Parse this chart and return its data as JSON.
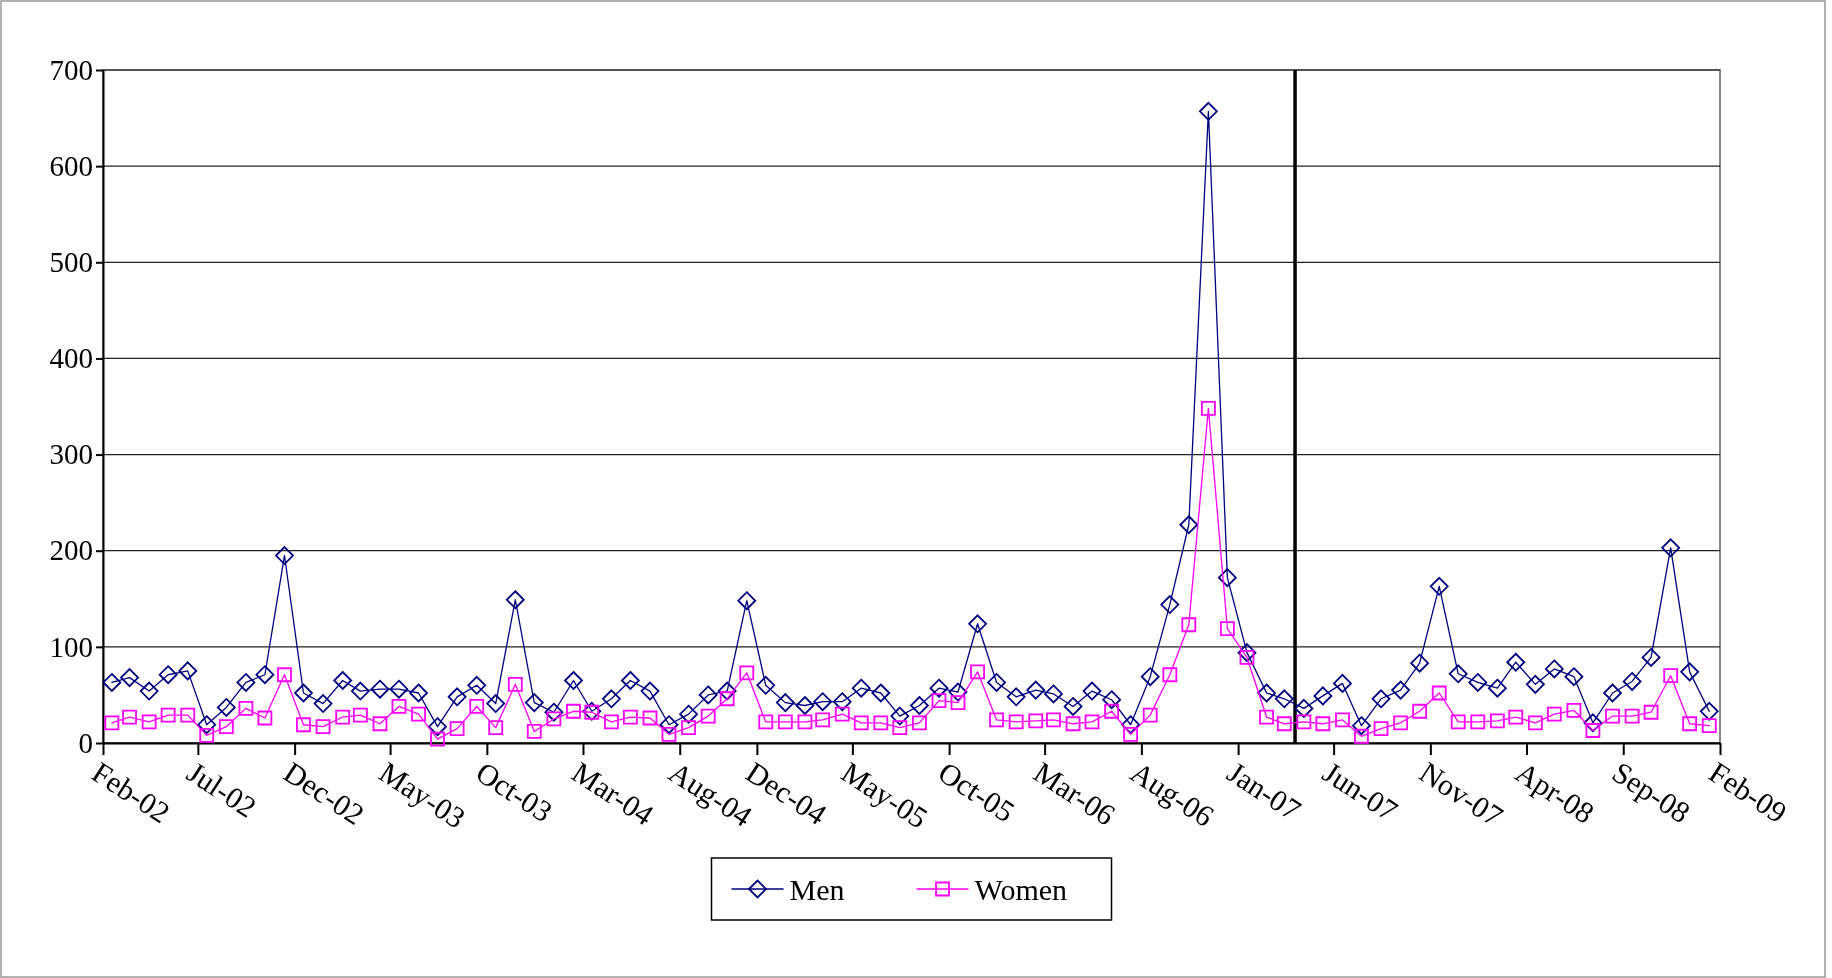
{
  "chart_data": {
    "type": "line",
    "x": [
      "2002-02-15",
      "2002-03-15",
      "2002-04-15",
      "2002-05-15",
      "2002-06-15",
      "2002-07-15",
      "2002-08-15",
      "2002-09-15",
      "2002-10-15",
      "2002-11-15",
      "2002-12-15",
      "2003-01-15",
      "2003-02-15",
      "2003-03-15",
      "2003-04-15",
      "2003-05-15",
      "2003-06-15",
      "2003-07-15",
      "2003-08-15",
      "2003-09-15",
      "2003-10-15",
      "2003-11-15",
      "2003-12-15",
      "2004-01-15",
      "2004-02-15",
      "2004-03-15",
      "2004-04-15",
      "2004-05-15",
      "2004-06-15",
      "2004-07-15",
      "2004-08-15",
      "2004-09-15",
      "2004-10-15",
      "2004-11-15",
      "2004-12-15",
      "2005-01-15",
      "2005-02-15",
      "2005-03-15",
      "2005-04-15",
      "2005-05-15",
      "2005-06-15",
      "2005-07-15",
      "2005-08-15",
      "2005-09-15",
      "2005-10-15",
      "2005-11-15",
      "2005-12-15",
      "2006-01-15",
      "2006-02-15",
      "2006-03-15",
      "2006-04-15",
      "2006-05-15",
      "2006-06-15",
      "2006-07-15",
      "2006-08-15",
      "2006-09-15",
      "2006-10-15",
      "2006-11-15",
      "2006-12-15",
      "2007-01-15",
      "2007-02-15",
      "2007-03-15",
      "2007-04-15",
      "2007-05-15",
      "2007-06-15",
      "2007-07-15",
      "2007-08-15",
      "2007-09-15",
      "2007-10-15",
      "2007-11-15",
      "2007-12-15",
      "2008-01-15",
      "2008-02-15",
      "2008-03-15",
      "2008-04-15",
      "2008-05-15",
      "2008-06-15",
      "2008-07-15",
      "2008-08-15",
      "2008-09-15",
      "2008-10-15",
      "2008-11-15",
      "2008-12-15",
      "2009-01-15"
    ],
    "series": [
      {
        "name": "Men",
        "color": "#000080",
        "marker": "diamond",
        "values": [
          63,
          68,
          54,
          71,
          75,
          19,
          37,
          63,
          71,
          195,
          52,
          41,
          65,
          54,
          56,
          56,
          52,
          17,
          48,
          60,
          41,
          149,
          42,
          32,
          65,
          33,
          46,
          65,
          54,
          19,
          30,
          50,
          54,
          148,
          60,
          42,
          39,
          43,
          43,
          57,
          52,
          28,
          39,
          57,
          53,
          124,
          63,
          48,
          55,
          51,
          38,
          54,
          45,
          19,
          69,
          144,
          227,
          657,
          172,
          94,
          52,
          46,
          36,
          49,
          62,
          18,
          46,
          55,
          83,
          163,
          72,
          63,
          57,
          84,
          61,
          77,
          69,
          21,
          52,
          64,
          89,
          203,
          74,
          33
        ]
      },
      {
        "name": "Women",
        "color": "#ff00ff",
        "marker": "square",
        "values": [
          21,
          27,
          22,
          29,
          29,
          8,
          17,
          36,
          26,
          71,
          19,
          17,
          27,
          29,
          20,
          38,
          30,
          4,
          15,
          38,
          16,
          61,
          12,
          25,
          33,
          32,
          22,
          27,
          26,
          9,
          16,
          28,
          46,
          73,
          22,
          22,
          22,
          24,
          30,
          21,
          21,
          16,
          21,
          44,
          42,
          74,
          24,
          22,
          23,
          24,
          20,
          22,
          33,
          9,
          29,
          71,
          123,
          348,
          119,
          89,
          27,
          20,
          22,
          20,
          24,
          7,
          15,
          21,
          33,
          52,
          22,
          22,
          23,
          27,
          21,
          30,
          34,
          13,
          28,
          28,
          32,
          70,
          20,
          18
        ]
      }
    ],
    "xlim": [
      "2002-02-01",
      "2009-02-01"
    ],
    "xticks": [
      {
        "value": "2002-02-01",
        "label": "Feb-02"
      },
      {
        "value": "2002-07-01",
        "label": "Jul-02"
      },
      {
        "value": "2002-12-01",
        "label": "Dec-02"
      },
      {
        "value": "2003-05-01",
        "label": "May-03"
      },
      {
        "value": "2003-10-01",
        "label": "Oct-03"
      },
      {
        "value": "2004-03-01",
        "label": "Mar-04"
      },
      {
        "value": "2004-08-01",
        "label": "Aug-04"
      },
      {
        "value": "2004-12-01",
        "label": "Dec-04"
      },
      {
        "value": "2005-05-01",
        "label": "May-05"
      },
      {
        "value": "2005-10-01",
        "label": "Oct-05"
      },
      {
        "value": "2006-03-01",
        "label": "Mar-06"
      },
      {
        "value": "2006-08-01",
        "label": "Aug-06"
      },
      {
        "value": "2007-01-01",
        "label": "Jan-07"
      },
      {
        "value": "2007-06-01",
        "label": "Jun-07"
      },
      {
        "value": "2007-11-01",
        "label": "Nov-07"
      },
      {
        "value": "2008-04-01",
        "label": "Apr-08"
      },
      {
        "value": "2008-09-01",
        "label": "Sep-08"
      },
      {
        "value": "2009-02-01",
        "label": "Feb-09"
      }
    ],
    "ylim": [
      0,
      700
    ],
    "yticks": [
      0,
      100,
      200,
      300,
      400,
      500,
      600,
      700
    ],
    "grid": "y",
    "legend": "bottom",
    "line_style": "solid",
    "ref_lines": [
      {
        "axis": "x",
        "value": "2007-04-01",
        "color": "#000000"
      }
    ]
  }
}
